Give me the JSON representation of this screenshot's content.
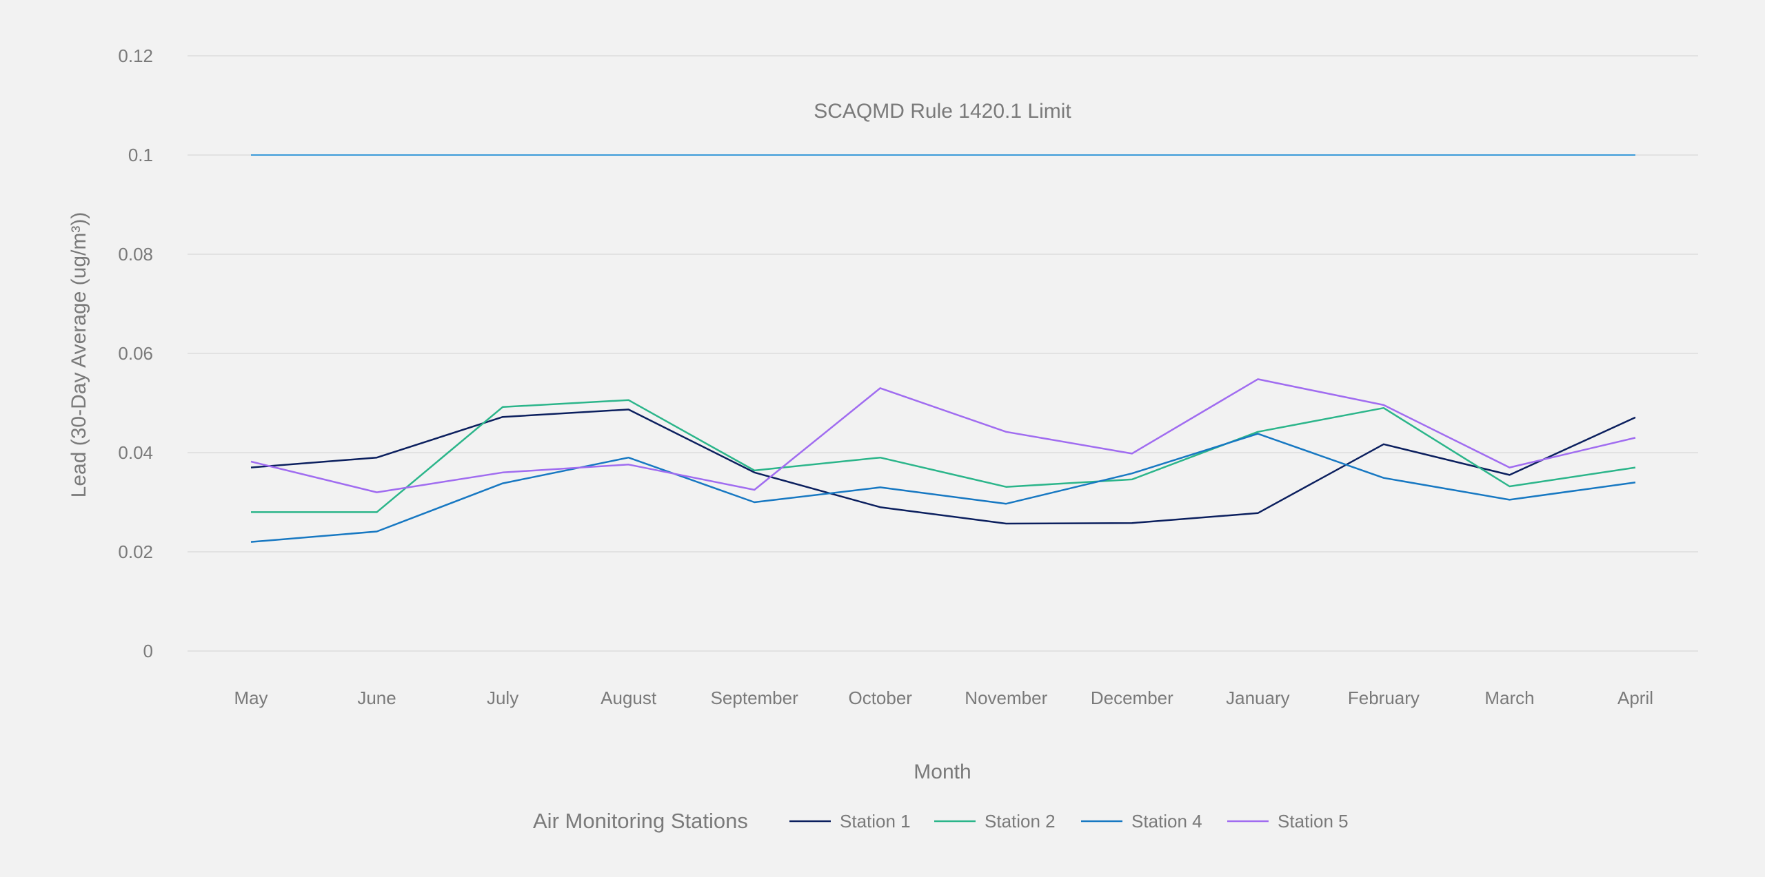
{
  "chart_data": {
    "type": "line",
    "categories": [
      "May",
      "June",
      "July",
      "August",
      "September",
      "October",
      "November",
      "December",
      "January",
      "February",
      "March",
      "April"
    ],
    "series": [
      {
        "name": "Station 1",
        "color": "#0b1f5e",
        "values": [
          0.037,
          0.039,
          0.0472,
          0.0487,
          0.036,
          0.029,
          0.0257,
          0.0258,
          0.0278,
          0.0417,
          0.0355,
          0.0471
        ]
      },
      {
        "name": "Station 2",
        "color": "#2bb58a",
        "values": [
          0.028,
          0.028,
          0.0492,
          0.0506,
          0.0364,
          0.039,
          0.0331,
          0.0346,
          0.0442,
          0.049,
          0.0332,
          0.037
        ]
      },
      {
        "name": "Station 4",
        "color": "#1778c2",
        "values": [
          0.022,
          0.0241,
          0.0338,
          0.039,
          0.03,
          0.033,
          0.0297,
          0.0358,
          0.0438,
          0.0349,
          0.0305,
          0.034
        ]
      },
      {
        "name": "Station 5",
        "color": "#a06cf0",
        "values": [
          0.0382,
          0.032,
          0.036,
          0.0376,
          0.0325,
          0.053,
          0.0442,
          0.0398,
          0.0548,
          0.0496,
          0.037,
          0.043
        ]
      }
    ],
    "limit": {
      "label": "SCAQMD Rule 1420.1 Limit",
      "value": 0.1,
      "color": "#3a9ad9"
    },
    "yticks": [
      "0",
      "0.02",
      "0.04",
      "0.06",
      "0.08",
      "0.1",
      "0.12"
    ],
    "ylim": [
      0,
      0.12
    ],
    "xlabel": "Month",
    "ylabel": "Lead (30-Day Average (ug/m³))",
    "grid": true,
    "legend": {
      "title": "Air Monitoring Stations",
      "position": "bottom"
    }
  }
}
